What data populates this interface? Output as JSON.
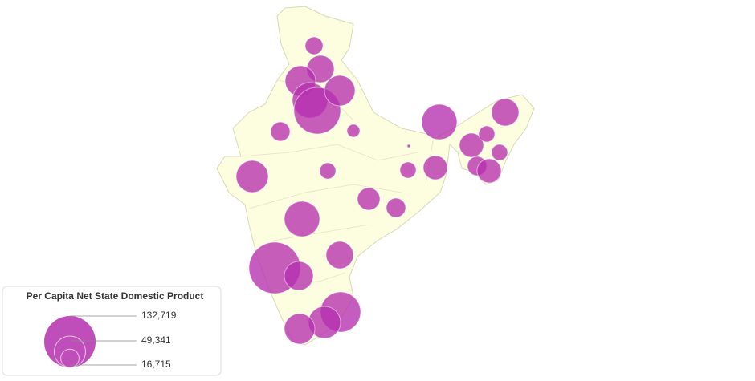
{
  "chart_data": {
    "type": "bubble-map",
    "values": [
      15700,
      37500,
      46800,
      62800,
      109000,
      46800,
      18700,
      8300,
      520,
      62800,
      37500,
      29200,
      13000,
      13000,
      18700,
      29200,
      29200,
      13000,
      13000,
      51800,
      25400,
      18700,
      62800,
      132719,
      37500,
      42000,
      81000,
      51800,
      46800
    ],
    "color": "#b52fae",
    "legend": {
      "title": "Per Capita Net State Domestic Product",
      "values": [
        132719,
        49341,
        16715
      ],
      "value_labels": [
        "132,719",
        "49,341",
        "16,715"
      ]
    }
  }
}
